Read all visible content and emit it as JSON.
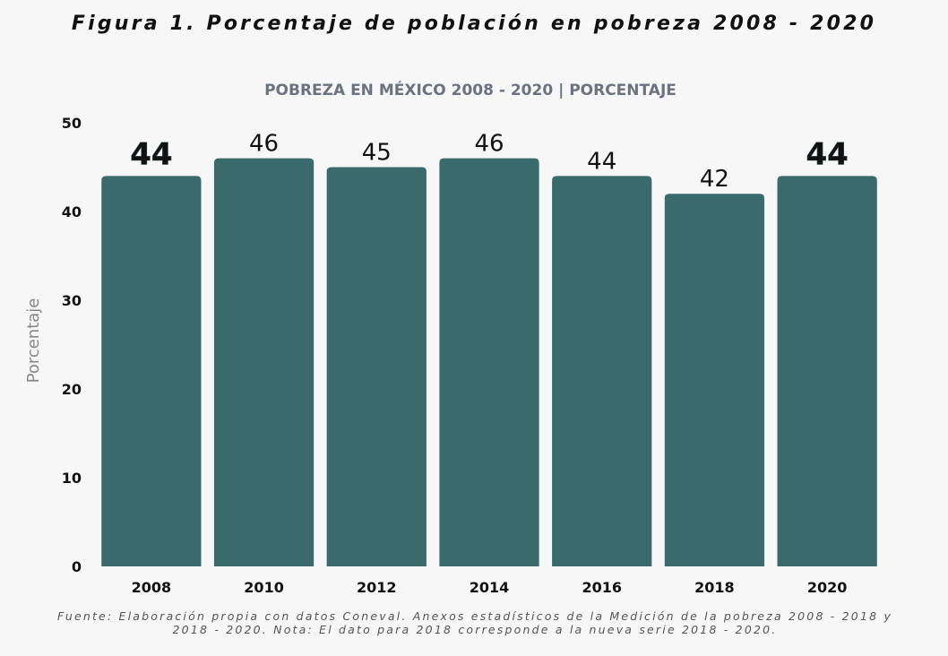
{
  "figure_title": "Figura 1. Porcentaje de población en pobreza 2008 - 2020",
  "source_note": "Fuente: Elaboración propia con datos Coneval. Anexos estadísticos de la Medición de la pobreza 2008 - 2018 y 2018 - 2020. Nota: El dato para 2018 corresponde a la nueva serie 2018 - 2020.",
  "colors": {
    "bar": "#3a6a6b",
    "background": "#f7f7f7"
  },
  "chart_data": {
    "type": "bar",
    "title": "POBREZA EN MÉXICO 2008 - 2020 | PORCENTAJE",
    "xlabel": "",
    "ylabel": "Porcentaje",
    "categories": [
      "2008",
      "2010",
      "2012",
      "2014",
      "2016",
      "2018",
      "2020"
    ],
    "values": [
      44,
      46,
      45,
      46,
      44,
      42,
      44
    ],
    "data_labels": [
      "44",
      "46",
      "45",
      "46",
      "44",
      "42",
      "44"
    ],
    "emphasized": [
      "2008",
      "2020"
    ],
    "ylim": [
      0,
      50
    ],
    "yticks": [
      0,
      10,
      20,
      30,
      40,
      50
    ],
    "grid": false,
    "legend": "none"
  }
}
